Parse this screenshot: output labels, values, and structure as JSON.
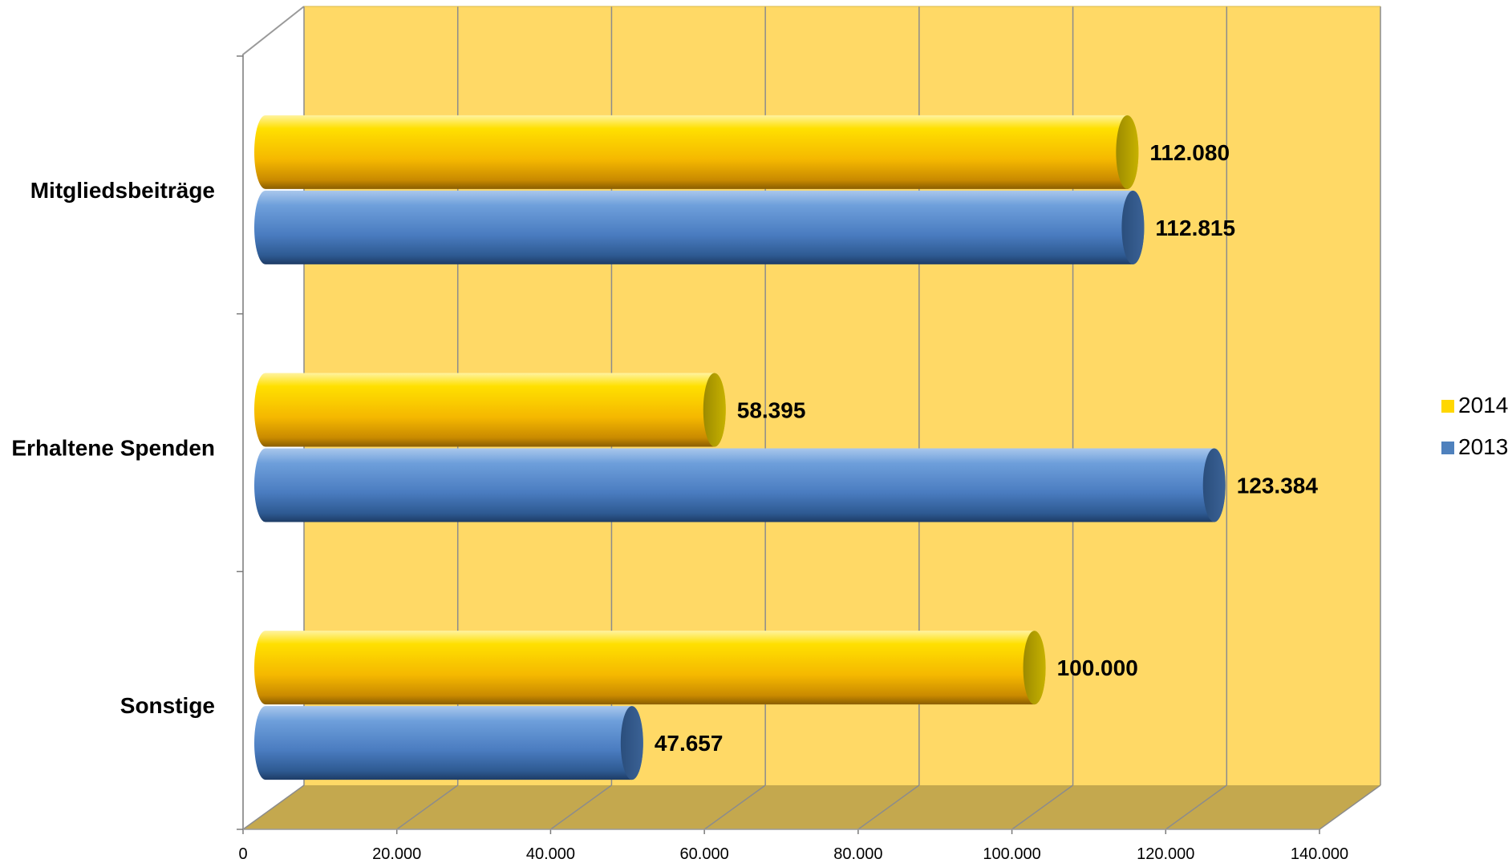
{
  "chart_data": {
    "type": "bar",
    "orientation": "horizontal",
    "three_d": true,
    "categories": [
      "Mitgliedsbeiträge",
      "Erhaltene Spenden",
      "Sonstige"
    ],
    "series": [
      {
        "name": "2014",
        "color": "#FFD700",
        "values": [
          112080,
          58395,
          100000
        ],
        "labels": [
          "112.080",
          "58.395",
          "100.000"
        ]
      },
      {
        "name": "2013",
        "color": "#4F81BD",
        "values": [
          112815,
          123384,
          47657
        ],
        "labels": [
          "112.815",
          "123.384",
          "47.657"
        ]
      }
    ],
    "xlim": [
      0,
      140000
    ],
    "xticks": [
      0,
      20000,
      40000,
      60000,
      80000,
      100000,
      120000,
      140000
    ],
    "xtick_labels": [
      "0",
      "20.000",
      "40.000",
      "60.000",
      "80.000",
      "100.000",
      "120.000",
      "140.000"
    ],
    "grid": true,
    "wall_color": "#FFD966",
    "floor_color": "#C4A84E",
    "legend_position": "right"
  }
}
